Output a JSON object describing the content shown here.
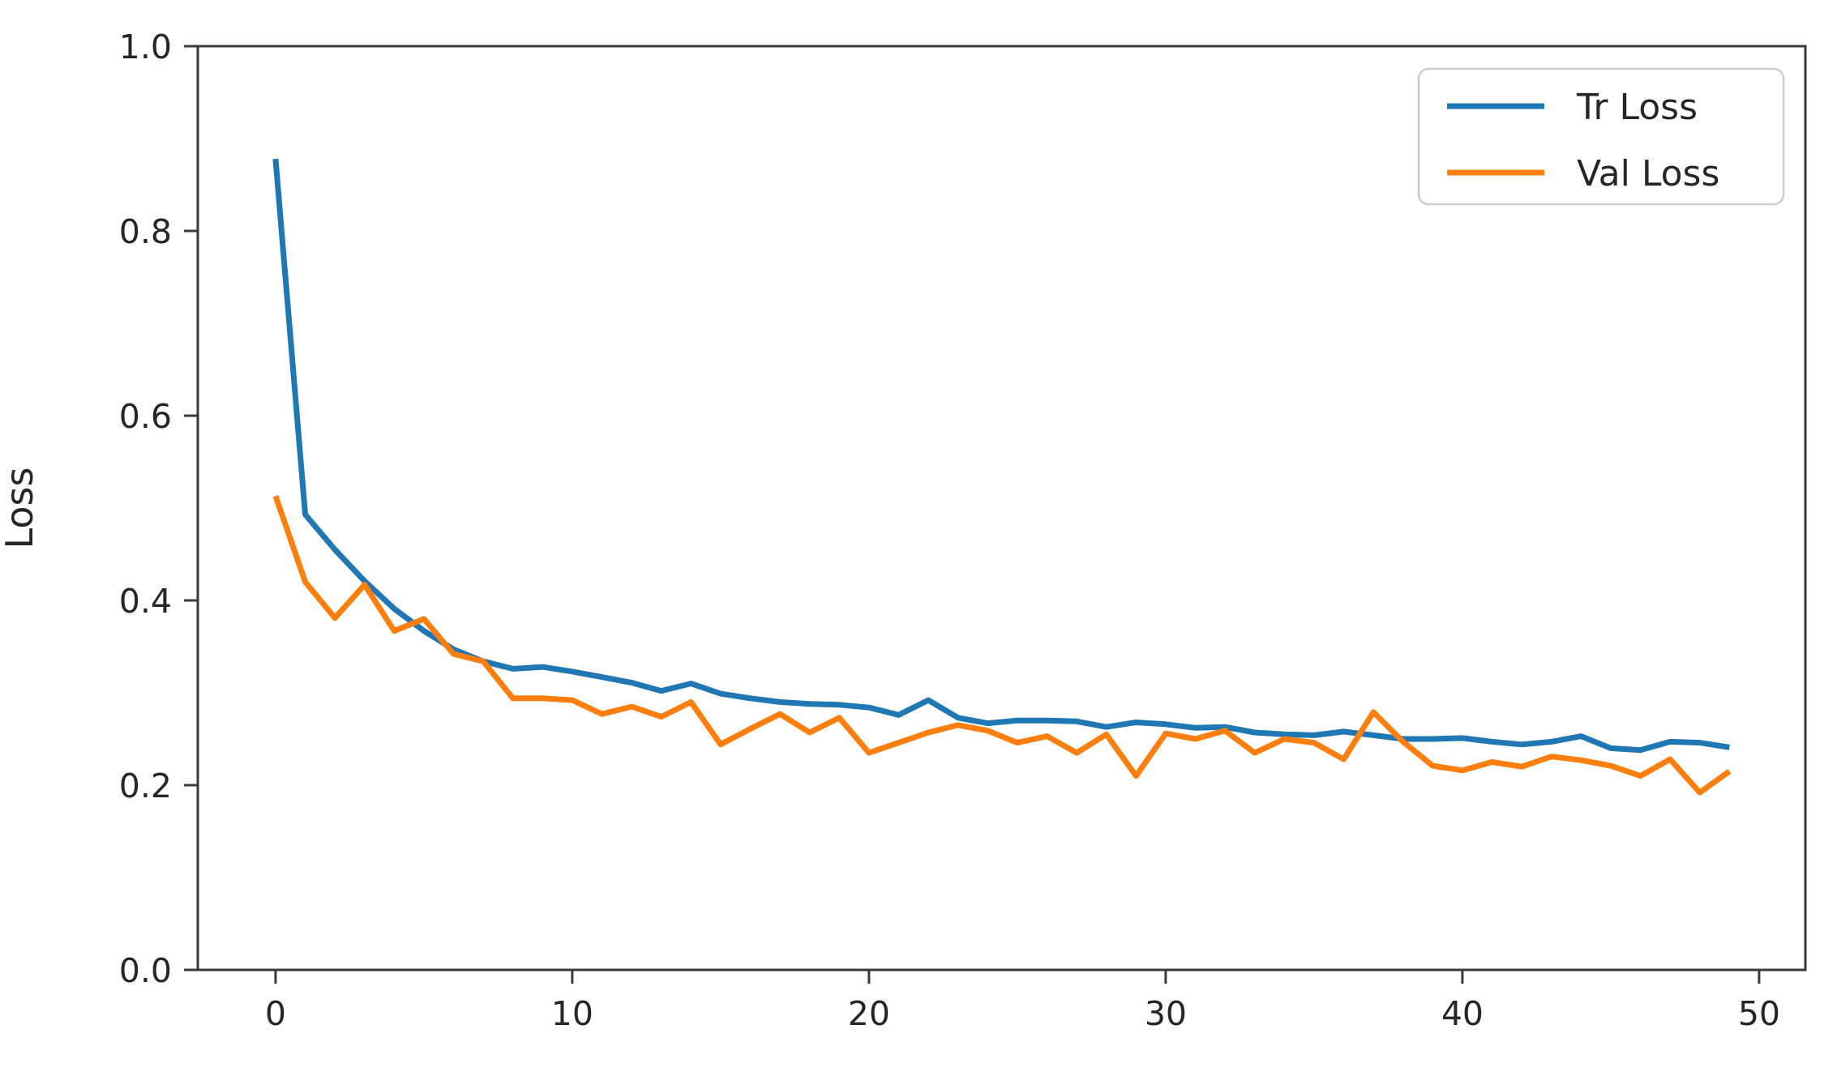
{
  "chart_data": {
    "type": "line",
    "title": "",
    "xlabel": "",
    "ylabel": "Loss",
    "grid": false,
    "xlim": [
      -2.62,
      51.56
    ],
    "ylim": [
      0.0,
      1.0
    ],
    "xticks": [
      0,
      10,
      20,
      30,
      40,
      50
    ],
    "yticks": [
      "0.0",
      "0.2",
      "0.4",
      "0.6",
      "0.8",
      "1.0"
    ],
    "legend": {
      "position": "upper right",
      "labels": [
        "Tr Loss",
        "Val Loss"
      ]
    },
    "x": [
      0,
      1,
      2,
      3,
      4,
      5,
      6,
      7,
      8,
      9,
      10,
      11,
      12,
      13,
      14,
      15,
      16,
      17,
      18,
      19,
      20,
      21,
      22,
      23,
      24,
      25,
      26,
      27,
      28,
      29,
      30,
      31,
      32,
      33,
      34,
      35,
      36,
      37,
      38,
      39,
      40,
      41,
      42,
      43,
      44,
      45,
      46,
      47,
      48,
      49
    ],
    "series": [
      {
        "name": "Tr Loss",
        "color": "#1f77b4",
        "values": [
          0.878,
          0.493,
          0.455,
          0.421,
          0.391,
          0.367,
          0.347,
          0.334,
          0.326,
          0.328,
          0.323,
          0.317,
          0.311,
          0.302,
          0.31,
          0.299,
          0.294,
          0.29,
          0.288,
          0.287,
          0.284,
          0.276,
          0.292,
          0.273,
          0.267,
          0.27,
          0.27,
          0.269,
          0.263,
          0.268,
          0.266,
          0.262,
          0.263,
          0.257,
          0.255,
          0.254,
          0.258,
          0.254,
          0.25,
          0.25,
          0.251,
          0.247,
          0.244,
          0.247,
          0.253,
          0.24,
          0.238,
          0.247,
          0.246,
          0.241
        ]
      },
      {
        "name": "Val Loss",
        "color": "#ff7f0e",
        "values": [
          0.513,
          0.42,
          0.381,
          0.417,
          0.367,
          0.38,
          0.342,
          0.334,
          0.294,
          0.294,
          0.292,
          0.277,
          0.285,
          0.274,
          0.29,
          0.244,
          0.261,
          0.277,
          0.257,
          0.273,
          0.235,
          0.246,
          0.257,
          0.265,
          0.259,
          0.246,
          0.253,
          0.235,
          0.255,
          0.21,
          0.256,
          0.25,
          0.259,
          0.235,
          0.25,
          0.246,
          0.228,
          0.279,
          0.247,
          0.221,
          0.216,
          0.225,
          0.22,
          0.231,
          0.227,
          0.221,
          0.21,
          0.228,
          0.192,
          0.215
        ]
      }
    ]
  }
}
